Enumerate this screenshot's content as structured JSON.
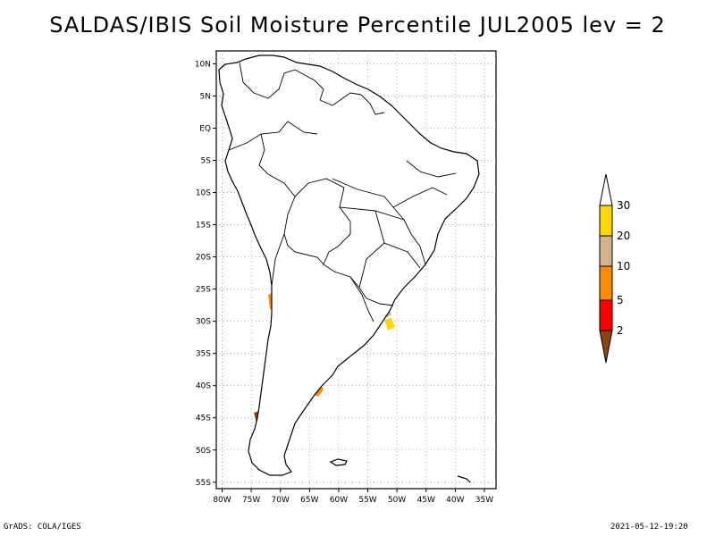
{
  "title": "SALDAS/IBIS Soil Moisture Percentile JUL2005 lev = 2",
  "map": {
    "lat_labels": [
      "10N",
      "5N",
      "EQ",
      "5S",
      "10S",
      "15S",
      "20S",
      "25S",
      "30S",
      "35S",
      "40S",
      "45S",
      "50S",
      "55S"
    ],
    "lat_values": [
      10,
      5,
      0,
      -5,
      -10,
      -15,
      -20,
      -25,
      -30,
      -35,
      -40,
      -45,
      -50,
      -55
    ],
    "lon_labels": [
      "80W",
      "75W",
      "70W",
      "65W",
      "60W",
      "55W",
      "50W",
      "45W",
      "40W",
      "35W"
    ],
    "lon_values": [
      -80,
      -75,
      -70,
      -65,
      -60,
      -55,
      -50,
      -45,
      -40,
      -35
    ],
    "lat_range": [
      -56,
      12
    ],
    "lon_range": [
      -81,
      -33
    ],
    "grid": true,
    "grid_style": "dotted"
  },
  "legend": {
    "labels": [
      "30",
      "20",
      "10",
      "5",
      "2"
    ],
    "colors": {
      "above_30": "#ffffff",
      "band_20_30": "#ffd700",
      "band_10_20": "#d2b48c",
      "band_5_10": "#ff8c00",
      "band_2_5": "#ff0000",
      "below_2": "#8b4513"
    }
  },
  "footer": {
    "left": "GrADS: COLA/IGES",
    "right": "2021-05-12-19:20"
  }
}
